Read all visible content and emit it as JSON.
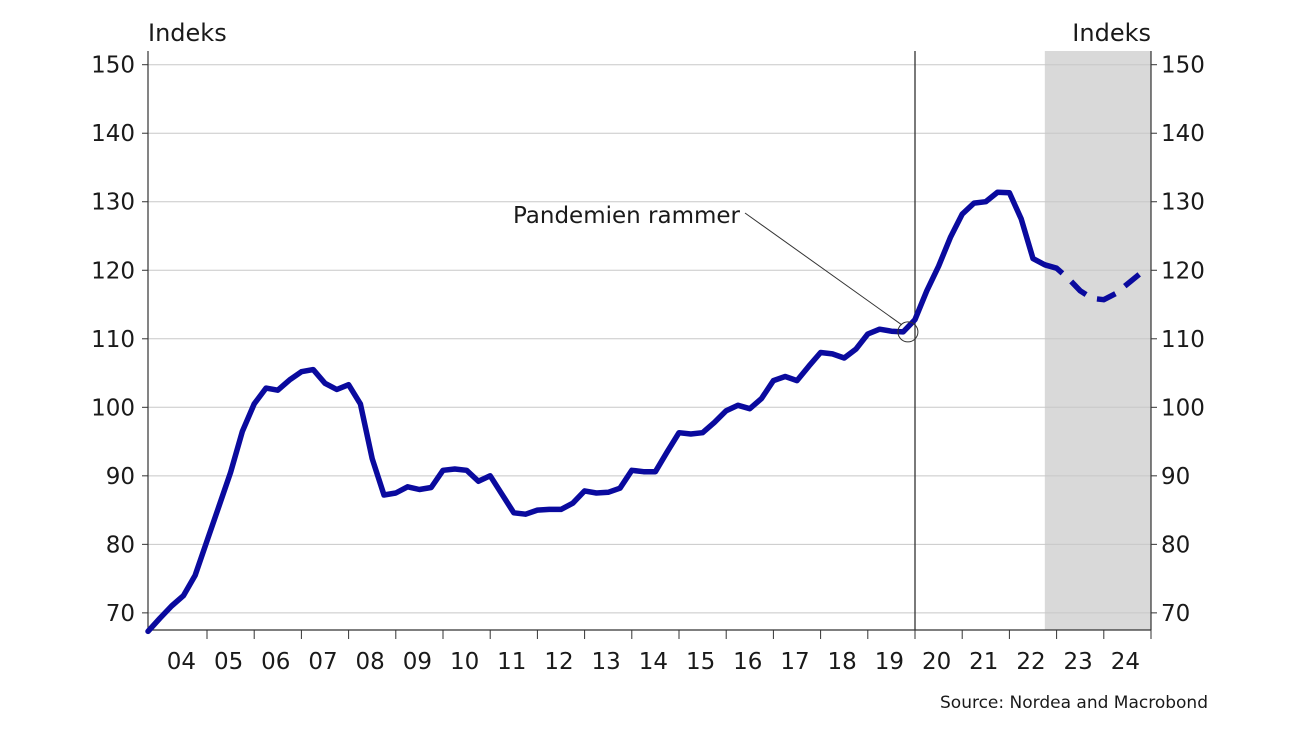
{
  "chart_data": {
    "type": "line",
    "y_label_left": "Indeks",
    "y_label_right": "Indeks",
    "ylim": [
      67.5,
      152
    ],
    "xlim": [
      2003.75,
      2025.0
    ],
    "y_ticks": [
      70,
      80,
      90,
      100,
      110,
      120,
      130,
      140,
      150
    ],
    "x_tick_labels": [
      "04",
      "05",
      "06",
      "07",
      "08",
      "09",
      "10",
      "11",
      "12",
      "13",
      "14",
      "15",
      "16",
      "17",
      "18",
      "19",
      "20",
      "21",
      "22",
      "23",
      "24"
    ],
    "grid": "horizontal",
    "forecast_shading": {
      "from": 2022.75,
      "to": 2025.0,
      "color": "#d9d9d9"
    },
    "vertical_marker": 2020.0,
    "annotation": {
      "text": "Pandemien rammer",
      "x": 2019.85,
      "y": 111.0
    },
    "series": [
      {
        "color": "#0a0a9e",
        "style": "solid",
        "x": [
          2003.75,
          2004.0,
          2004.25,
          2004.5,
          2004.75,
          2005.0,
          2005.25,
          2005.5,
          2005.75,
          2006.0,
          2006.25,
          2006.5,
          2006.75,
          2007.0,
          2007.25,
          2007.5,
          2007.75,
          2008.0,
          2008.25,
          2008.5,
          2008.75,
          2009.0,
          2009.25,
          2009.5,
          2009.75,
          2010.0,
          2010.25,
          2010.5,
          2010.75,
          2011.0,
          2011.25,
          2011.5,
          2011.75,
          2012.0,
          2012.25,
          2012.5,
          2012.75,
          2013.0,
          2013.25,
          2013.5,
          2013.75,
          2014.0,
          2014.25,
          2014.5,
          2014.75,
          2015.0,
          2015.25,
          2015.5,
          2015.75,
          2016.0,
          2016.25,
          2016.5,
          2016.75,
          2017.0,
          2017.25,
          2017.5,
          2017.75,
          2018.0,
          2018.25,
          2018.5,
          2018.75,
          2019.0,
          2019.25,
          2019.5,
          2019.75,
          2020.0,
          2020.25,
          2020.5,
          2020.75,
          2021.0,
          2021.25,
          2021.5,
          2021.75,
          2022.0,
          2022.25,
          2022.5,
          2022.75
        ],
        "values": [
          67.3,
          69.2,
          71.0,
          72.5,
          75.5,
          80.5,
          85.5,
          90.5,
          96.5,
          100.5,
          102.8,
          102.5,
          104.0,
          105.2,
          105.5,
          103.5,
          102.6,
          103.3,
          100.5,
          92.5,
          87.2,
          87.5,
          88.4,
          88.0,
          88.3,
          90.8,
          91.0,
          90.8,
          89.2,
          90.0,
          87.3,
          84.6,
          84.4,
          85.0,
          85.1,
          85.1,
          86.0,
          87.8,
          87.5,
          87.6,
          88.2,
          90.8,
          90.6,
          90.6,
          93.5,
          96.3,
          96.1,
          96.3,
          97.8,
          99.5,
          100.3,
          99.8,
          101.3,
          103.9,
          104.5,
          103.9,
          106.0,
          108.0,
          107.8,
          107.2,
          108.5,
          110.7,
          111.4,
          111.1,
          111.0,
          112.8,
          117.0,
          120.6,
          124.8,
          128.2,
          129.8,
          130.0,
          131.4,
          131.3,
          127.5,
          121.7,
          120.8
        ]
      },
      {
        "color": "#0a0a9e",
        "style": "dashed",
        "x": [
          2022.75,
          2023.0,
          2023.25,
          2023.5,
          2023.75,
          2024.0,
          2024.25,
          2024.5,
          2024.75
        ],
        "values": [
          120.8,
          120.3,
          118.8,
          117.0,
          115.9,
          115.7,
          116.6,
          118.0,
          119.4
        ]
      }
    ]
  },
  "source": "Source: Nordea and Macrobond"
}
